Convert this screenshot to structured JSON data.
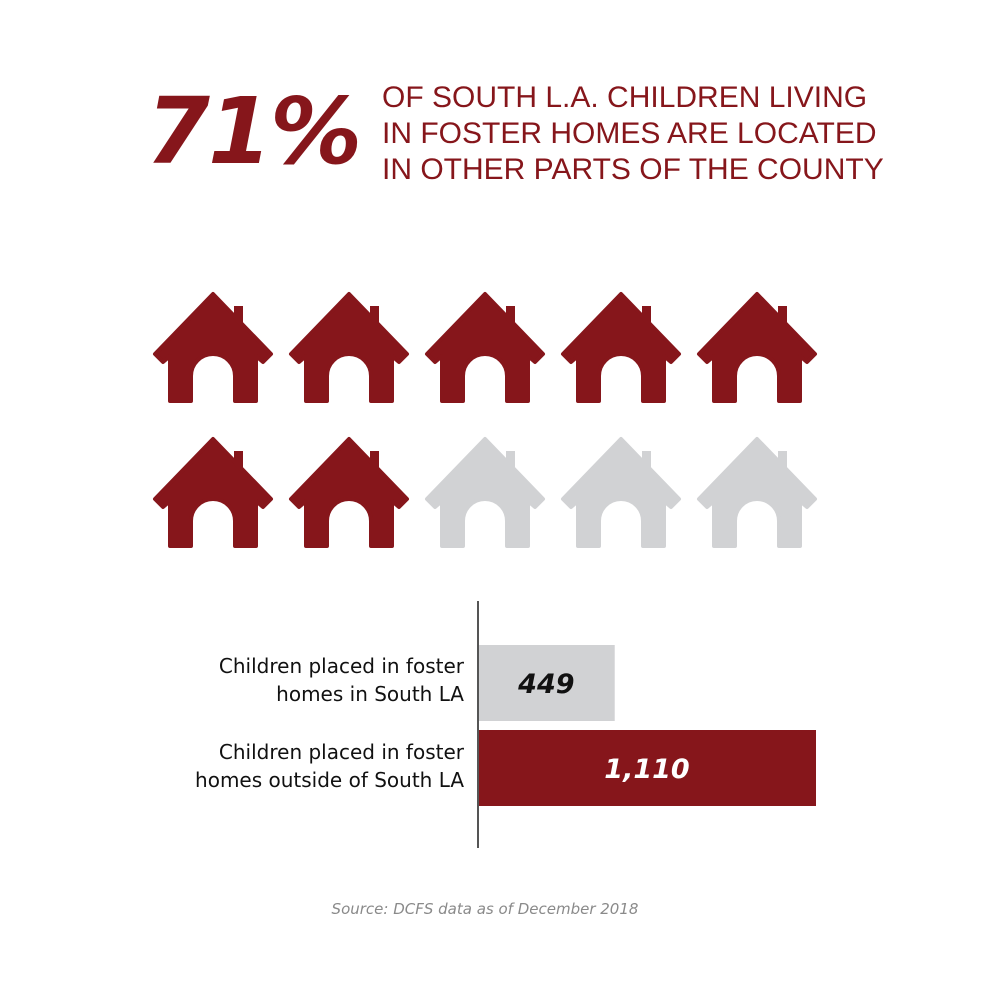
{
  "headline": {
    "percent": "71%",
    "lines": [
      "OF SOUTH L.A. CHILDREN LIVING",
      "IN FOSTER HOMES ARE LOCATED",
      "IN OTHER PARTS OF THE COUNTY"
    ]
  },
  "icon_grid": {
    "icon": "house-icon",
    "total": 10,
    "highlighted": 7,
    "columns": 5,
    "highlight_color": "#86161b",
    "base_color": "#d1d2d4"
  },
  "chart_data": {
    "type": "bar",
    "orientation": "horizontal",
    "categories": [
      [
        "Children placed in foster",
        "homes in South LA"
      ],
      [
        "Children placed in foster",
        "homes outside of South LA"
      ]
    ],
    "values": [
      449,
      1110
    ],
    "value_labels": [
      "449",
      "1,110"
    ],
    "colors": [
      "#d1d2d4",
      "#86161b"
    ],
    "value_label_colors": [
      "#111111",
      "#ffffff"
    ],
    "xlim": [
      0,
      1110
    ],
    "grid": false
  },
  "source": "Source: DCFS data as of December 2018"
}
